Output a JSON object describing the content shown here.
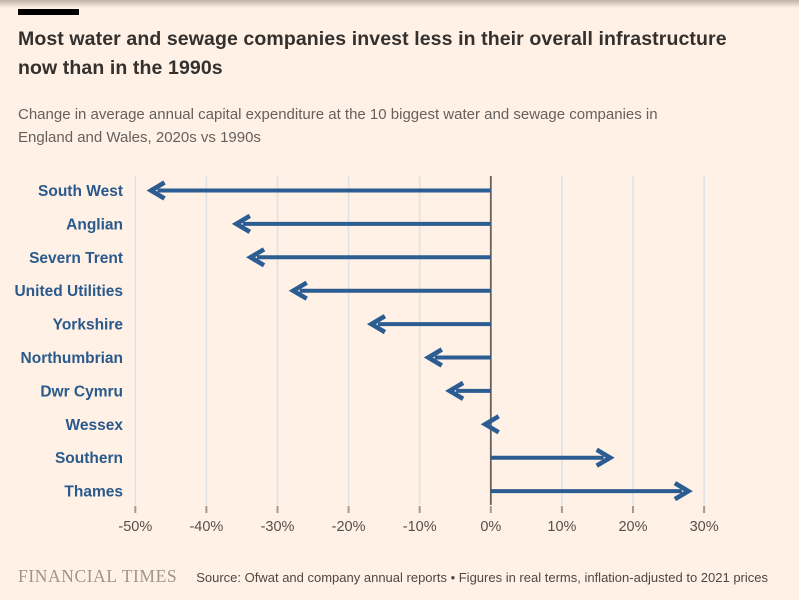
{
  "chart_data": {
    "type": "bar",
    "variant": "horizontal-arrow",
    "title": "Most water and sewage companies invest less in their overall infrastructure now than in the 1990s",
    "subtitle": "Change in average annual capital expenditure at the 10 biggest water and sewage companies in England and Wales, 2020s vs 1990s",
    "categories": [
      "South West",
      "Anglian",
      "Severn Trent",
      "United Utilities",
      "Yorkshire",
      "Northumbrian",
      "Dwr Cymru",
      "Wessex",
      "Southern",
      "Thames"
    ],
    "values": [
      -48,
      -36,
      -34,
      -28,
      -17,
      -9,
      -6,
      -1,
      17,
      28
    ],
    "unit": "%",
    "xlabel": "",
    "ylabel": "",
    "xlim": [
      -50,
      30
    ],
    "x_ticks": {
      "values": [
        -50,
        -40,
        -30,
        -20,
        -10,
        0,
        10,
        20,
        30
      ],
      "labels": [
        "-50%",
        "-40%",
        "-30%",
        "-20%",
        "-10%",
        "0%",
        "10%",
        "20%",
        "30%"
      ]
    },
    "grid": "vertical-gridlines-on",
    "legend": "none",
    "zero_baseline": true
  },
  "footer": {
    "brand": "FINANCIAL TIMES",
    "source": "Source: Ofwat and company annual reports • Figures in real terms, inflation-adjusted to 2021 prices"
  },
  "colors": {
    "background": "#FFF1E5",
    "accent_blue": "#2B5C92",
    "category_label": "#2A598C",
    "title_text": "#33302E",
    "muted_text": "#66605C",
    "axis_label_text": "#54504B",
    "gridline": "#E0E2E6",
    "zero_line": "#66605C",
    "tick_mark": "#A39A90",
    "brand_text": "#9E958B",
    "source_text": "#4D4845",
    "top_bar": "#000000"
  }
}
